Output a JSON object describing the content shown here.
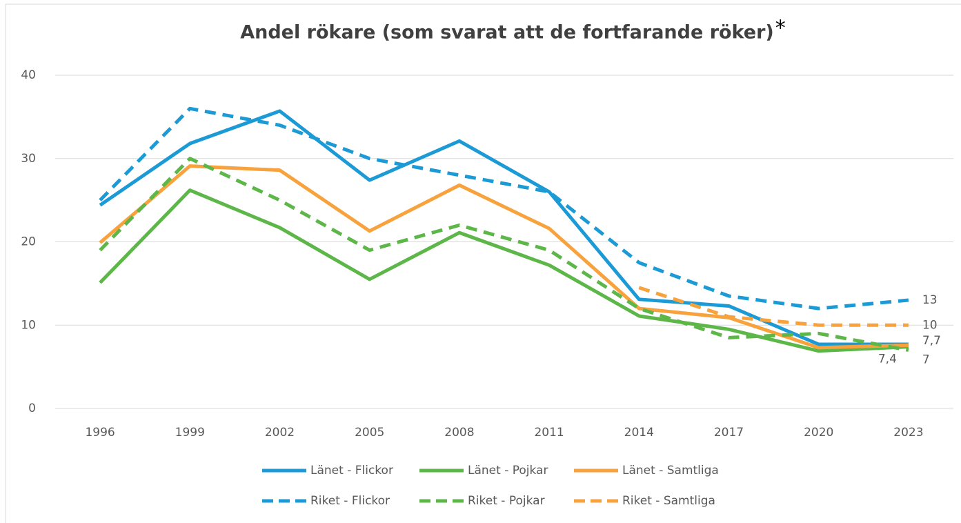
{
  "chart_data": {
    "type": "line",
    "title": "Andel rökare (som svarat att de fortfarande röker)",
    "title_mark": "*",
    "categories": [
      "1996",
      "1999",
      "2002",
      "2005",
      "2008",
      "2011",
      "2014",
      "2017",
      "2020",
      "2023"
    ],
    "series": [
      {
        "name": "Länet - Flickor",
        "color": "#1b9ad6",
        "dash": false,
        "values": [
          24.4,
          31.8,
          35.7,
          27.4,
          32.1,
          26,
          13.1,
          12.3,
          7.7,
          7.7
        ],
        "value_labels": [
          null,
          null,
          null,
          null,
          null,
          null,
          null,
          null,
          null,
          "7,7"
        ]
      },
      {
        "name": "Länet - Pojkar",
        "color": "#5cb748",
        "dash": false,
        "values": [
          15.1,
          26.2,
          21.7,
          15.5,
          21.1,
          17.2,
          11.1,
          9.5,
          6.9,
          7.4
        ],
        "value_labels": [
          null,
          null,
          null,
          null,
          null,
          null,
          null,
          null,
          null,
          "7,4"
        ]
      },
      {
        "name": "Länet - Samtliga",
        "color": "#f7a23c",
        "dash": false,
        "values": [
          19.9,
          29.1,
          28.6,
          21.3,
          26.8,
          21.6,
          12,
          10.9,
          7.3,
          7.6
        ]
      },
      {
        "name": "Riket - Flickor",
        "color": "#1b9ad6",
        "dash": true,
        "values": [
          25,
          36,
          34,
          30,
          28,
          26,
          17.5,
          13.5,
          12,
          13
        ],
        "value_labels": [
          null,
          null,
          null,
          null,
          null,
          null,
          null,
          null,
          null,
          "13"
        ]
      },
      {
        "name": "Riket - Pojkar",
        "color": "#5cb748",
        "dash": true,
        "values": [
          19,
          30,
          25,
          19,
          22,
          19,
          12,
          8.5,
          9,
          7
        ],
        "value_labels": [
          null,
          null,
          null,
          null,
          null,
          null,
          null,
          null,
          null,
          "7"
        ]
      },
      {
        "name": "Riket - Samtliga",
        "color": "#f7a23c",
        "dash": true,
        "values": [
          null,
          null,
          null,
          null,
          null,
          null,
          14.5,
          11,
          10,
          10
        ],
        "value_labels": [
          null,
          null,
          null,
          null,
          null,
          null,
          null,
          null,
          null,
          "10"
        ]
      }
    ],
    "ylim": [
      0,
      40
    ],
    "yticks": [
      0,
      10,
      20,
      30,
      40
    ],
    "grid": true
  }
}
